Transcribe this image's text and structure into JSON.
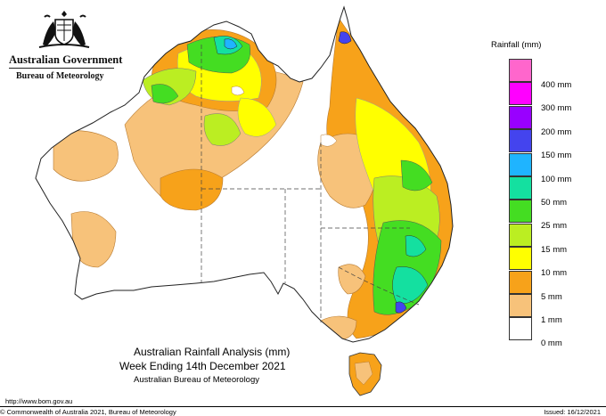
{
  "header": {
    "government": "Australian Government",
    "bureau": "Bureau of Meteorology"
  },
  "legend": {
    "title": "Rainfall (mm)",
    "items": [
      {
        "label": "400 mm",
        "color": "#ff66cc"
      },
      {
        "label": "300 mm",
        "color": "#ff00ff"
      },
      {
        "label": "200 mm",
        "color": "#9900ff"
      },
      {
        "label": "150 mm",
        "color": "#4444ee"
      },
      {
        "label": "100 mm",
        "color": "#1fb4ff"
      },
      {
        "label": "50 mm",
        "color": "#14e0a0"
      },
      {
        "label": "25 mm",
        "color": "#44dd22"
      },
      {
        "label": "15 mm",
        "color": "#bbee22"
      },
      {
        "label": "10 mm",
        "color": "#ffff00"
      },
      {
        "label": "5 mm",
        "color": "#f7a21a"
      },
      {
        "label": "1 mm",
        "color": "#f7c27a"
      },
      {
        "label": "0 mm",
        "color": "#ffffff"
      }
    ]
  },
  "map_title": {
    "line1": "Australian Rainfall Analysis (mm)",
    "line2": "Week Ending 14th December 2021",
    "line3": "Australian Bureau of Meteorology"
  },
  "footer": {
    "url": "http://www.bom.gov.au",
    "copyright": "© Commonwealth of Australia 2021, Bureau of Meteorology",
    "issued": "Issued: 16/12/2021"
  }
}
